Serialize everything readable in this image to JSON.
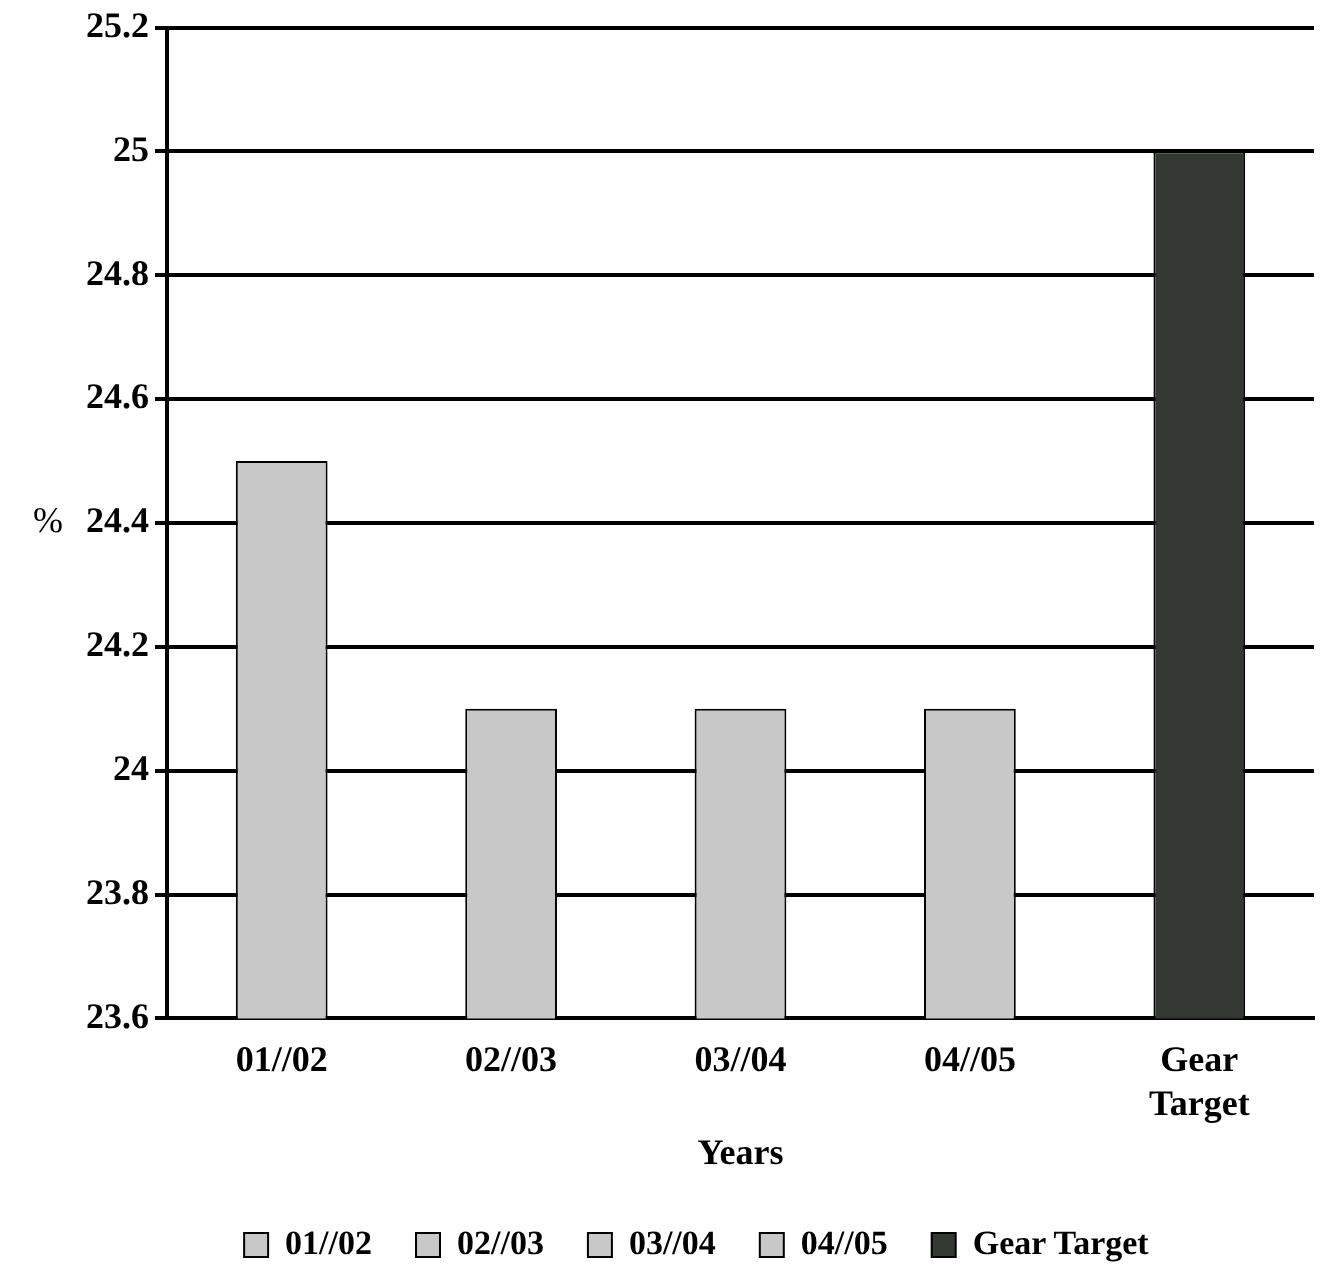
{
  "chart_data": {
    "type": "bar",
    "xlabel": "Years",
    "ylabel": "%",
    "categories": [
      "01//02",
      "02//03",
      "03//04",
      "04//05",
      "Gear Target"
    ],
    "series": [
      {
        "name": "01//02",
        "color": "#c8c8c8",
        "values": [
          24.5,
          null,
          null,
          null,
          null
        ]
      },
      {
        "name": "02//03",
        "color": "#c8c8c8",
        "values": [
          null,
          24.1,
          null,
          null,
          null
        ]
      },
      {
        "name": "03//04",
        "color": "#c8c8c8",
        "values": [
          null,
          null,
          24.1,
          null,
          null
        ]
      },
      {
        "name": "04//05",
        "color": "#c8c8c8",
        "values": [
          null,
          null,
          null,
          24.1,
          null
        ]
      },
      {
        "name": "Gear Target",
        "color": "#333833",
        "values": [
          null,
          null,
          null,
          null,
          25
        ]
      }
    ],
    "ylim": [
      23.6,
      25.2
    ],
    "yticks": [
      23.6,
      23.8,
      24,
      24.2,
      24.4,
      24.6,
      24.8,
      25,
      25.2
    ],
    "grid": "y",
    "legend": "bottom"
  }
}
